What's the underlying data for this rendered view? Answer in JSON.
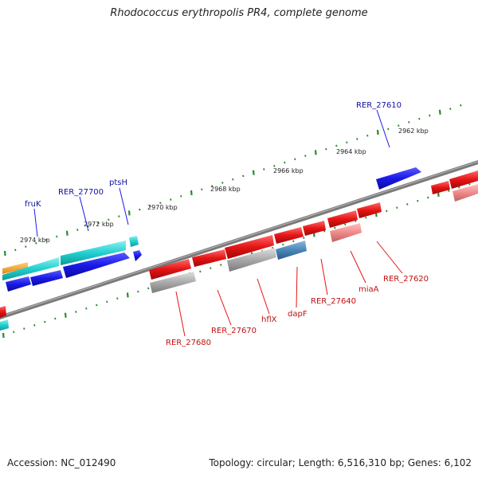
{
  "title": "Rhodococcus erythropolis PR4, complete genome",
  "footer": {
    "accession": "Accession: NC_012490",
    "topology": "Topology: circular; Length: 6,516,310 bp; Genes: 6,102"
  },
  "scale_labels": [
    "2974 kbp",
    "2972 kbp",
    "2970 kbp",
    "2968 kbp",
    "2966 kbp",
    "2964 kbp",
    "2962 kbp"
  ],
  "forward_gene_labels": [
    "fruK",
    "RER_27700",
    "ptsH",
    "RER_27610"
  ],
  "reverse_gene_labels": [
    "RER_27680",
    "RER_27670",
    "hflX",
    "dapF",
    "RER_27640",
    "miaA",
    "RER_27620"
  ],
  "colors": {
    "forward_cds": "#1a1ae8",
    "reverse_cds": "#e51414",
    "cyan_feature": "#22d0d0",
    "grey_feature": "#a9a9a9",
    "steel_feature": "#4a86b8",
    "pink_feature": "#f08a8a",
    "orange_feature": "#f0a020",
    "backbone": "#7a7a7a",
    "tick": "#2a8a2a",
    "forward_label": "#1010a0",
    "reverse_label": "#c01010"
  }
}
